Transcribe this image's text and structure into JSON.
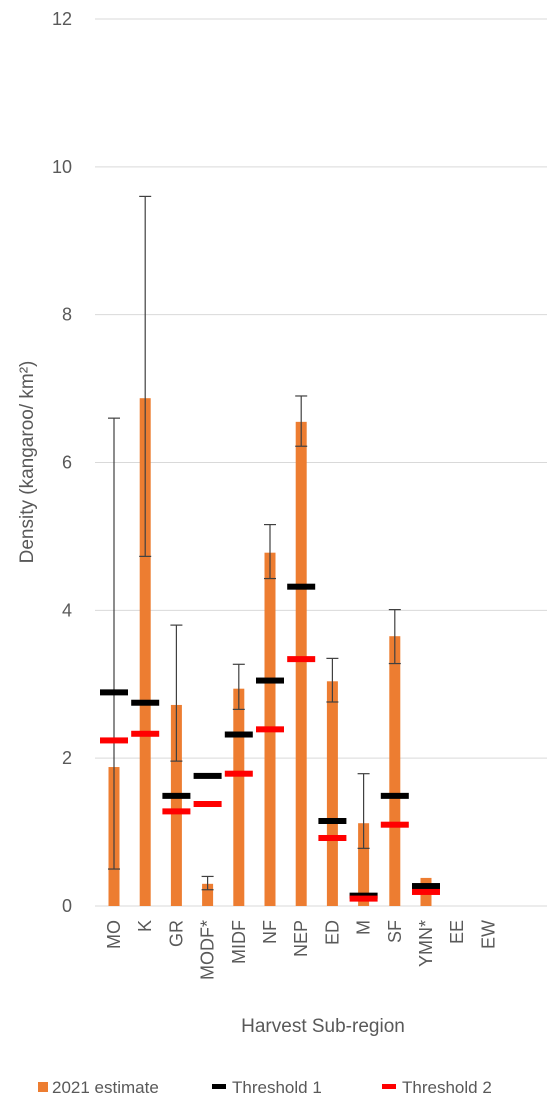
{
  "chart_data": {
    "type": "bar",
    "title": "",
    "xlabel": "Harvest Sub-region",
    "ylabel": "Density (kangaroo/ km²)",
    "ylim": [
      0,
      12
    ],
    "yticks": [
      0,
      2,
      4,
      6,
      8,
      10,
      12
    ],
    "grid": true,
    "legend_position": "bottom",
    "categories": [
      "MO",
      "K",
      "GR",
      "MODF*",
      "MIDF",
      "NF",
      "NEP",
      "ED",
      "M",
      "SF",
      "YMN*",
      "EE",
      "EW"
    ],
    "series": [
      {
        "name": "2021 estimate",
        "kind": "bar",
        "color": "#ED7D31",
        "values": [
          1.88,
          6.87,
          2.72,
          0.3,
          2.94,
          4.78,
          6.55,
          3.04,
          1.12,
          3.65,
          0.38,
          0,
          0
        ],
        "error_low": [
          0.5,
          4.73,
          1.96,
          0.22,
          2.66,
          4.43,
          6.22,
          2.76,
          0.78,
          3.28,
          null,
          null,
          null
        ],
        "error_high": [
          6.6,
          9.6,
          3.8,
          0.4,
          3.27,
          5.16,
          6.9,
          3.35,
          1.79,
          4.01,
          null,
          null,
          null
        ]
      },
      {
        "name": "Threshold 1",
        "kind": "marker",
        "color": "#000000",
        "values": [
          2.89,
          2.75,
          1.49,
          1.76,
          2.32,
          3.05,
          4.32,
          1.15,
          0.14,
          1.49,
          0.27,
          null,
          null
        ]
      },
      {
        "name": "Threshold 2",
        "kind": "marker",
        "color": "#FF0000",
        "values": [
          2.24,
          2.33,
          1.28,
          1.38,
          1.79,
          2.39,
          3.34,
          0.92,
          0.1,
          1.1,
          0.19,
          null,
          null
        ]
      }
    ]
  },
  "colors": {
    "grid": "#D9D9D9",
    "text": "#595959",
    "error_bar": "#404040"
  }
}
